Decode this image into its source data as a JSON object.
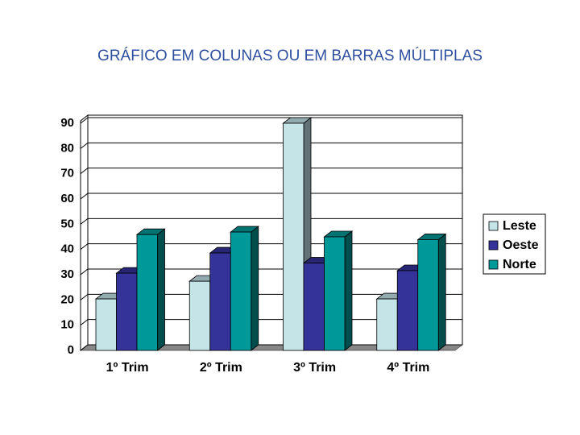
{
  "chart_data": {
    "type": "bar3d",
    "title": "GRÁFICO EM COLUNAS OU EM BARRAS MÚLTIPLAS",
    "categories": [
      "1º Trim",
      "2º Trim",
      "3º Trim",
      "4º Trim"
    ],
    "series": [
      {
        "name": "Leste",
        "color": "#c4e4e8",
        "values": [
          20.4,
          27.4,
          90,
          20.4
        ]
      },
      {
        "name": "Oeste",
        "color": "#333399",
        "values": [
          30.6,
          38.6,
          34.6,
          31.6
        ]
      },
      {
        "name": "Norte",
        "color": "#009999",
        "values": [
          45.9,
          46.9,
          45,
          43.9
        ]
      }
    ],
    "ylim": [
      0,
      90
    ],
    "yticks": [
      0,
      10,
      20,
      30,
      40,
      50,
      60,
      70,
      80,
      90
    ],
    "grid": true,
    "legend": "right"
  }
}
